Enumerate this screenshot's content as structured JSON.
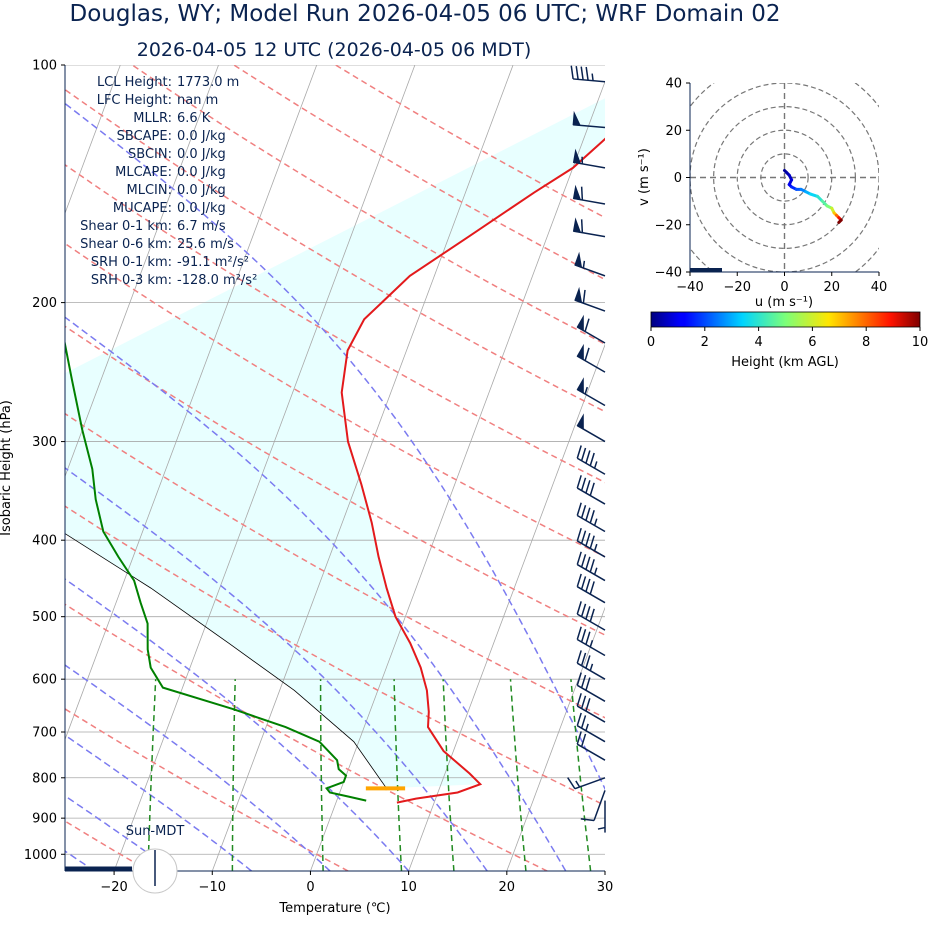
{
  "title_main": "Douglas, WY; Model Run 2026-04-05 06 UTC; WRF Domain 02",
  "title_sub": "2026-04-05 12 UTC  (2026-04-05 06 MDT)",
  "colors": {
    "temperature": "#e31a1c",
    "dewpoint": "#008000",
    "parcel": "#000000",
    "dry_adiabat": "#f08080",
    "moist_adiabat": "#7b7bf0",
    "mixing_ratio": "#228b22",
    "cape_shade": "#e8ffff",
    "barb": "#0a2350",
    "lcl_marker": "#ffa500"
  },
  "info": [
    {
      "label": "LCL Height:",
      "value": "1773.0 m"
    },
    {
      "label": "LFC Height:",
      "value": "nan m"
    },
    {
      "label": "MLLR:",
      "value": "6.6 K"
    },
    {
      "label": "SBCAPE:",
      "value": "0.0 J/kg"
    },
    {
      "label": "SBCIN:",
      "value": "0.0 J/kg"
    },
    {
      "label": "MLCAPE:",
      "value": "0.0 J/kg"
    },
    {
      "label": "MLCIN:",
      "value": "0.0 J/kg"
    },
    {
      "label": "MUCAPE:",
      "value": "0.0 J/kg"
    },
    {
      "label": "Shear 0-1 km:",
      "value": "6.7 m/s"
    },
    {
      "label": "Shear 0-6 km:",
      "value": "25.6 m/s"
    },
    {
      "label": "SRH 0-1 km:",
      "value": "-91.1 m²/s²"
    },
    {
      "label": "SRH 0-3 km:",
      "value": "-128.0 m²/s²"
    }
  ],
  "sun_label": "Sun-MDT",
  "chart_data": [
    {
      "type": "line",
      "name": "skew-T log-P",
      "xlabel": "Temperature (℃)",
      "ylabel": "Isobaric Height (hPa)",
      "xlim": [
        -25,
        30
      ],
      "ylim": [
        1050,
        100
      ],
      "x_ticks": [
        -20,
        -10,
        0,
        10,
        20,
        30
      ],
      "y_ticks": [
        100,
        200,
        300,
        400,
        500,
        600,
        700,
        800,
        900,
        1000
      ],
      "skew_deg_per_decade": 30,
      "grid": true,
      "series": [
        {
          "name": "",
          "key": "temperature",
          "points": [
            [
              6.2,
              860
            ],
            [
              8,
              850
            ],
            [
              12,
              835
            ],
            [
              14,
              815
            ],
            [
              12.5,
              790
            ],
            [
              9,
              740
            ],
            [
              6.5,
              690
            ],
            [
              6,
              660
            ],
            [
              5,
              620
            ],
            [
              3.5,
              580
            ],
            [
              1.5,
              540
            ],
            [
              -1,
              500
            ],
            [
              -3,
              460
            ],
            [
              -5,
              420
            ],
            [
              -7,
              380
            ],
            [
              -9.5,
              340
            ],
            [
              -12.5,
              300
            ],
            [
              -15,
              260
            ],
            [
              -16,
              230
            ],
            [
              -15.5,
              210
            ],
            [
              -12.5,
              185
            ],
            [
              -8,
              165
            ],
            [
              -3,
              145
            ],
            [
              0,
              135
            ],
            [
              2,
              125
            ],
            [
              4,
              115
            ],
            [
              6,
              100
            ]
          ]
        },
        {
          "name": "",
          "key": "dewpoint",
          "points": [
            [
              3,
              855
            ],
            [
              1,
              845
            ],
            [
              -1,
              835
            ],
            [
              -1.5,
              825
            ],
            [
              0,
              810
            ],
            [
              0,
              795
            ],
            [
              -1,
              780
            ],
            [
              -1.5,
              760
            ],
            [
              -4,
              720
            ],
            [
              -8,
              690
            ],
            [
              -14,
              655
            ],
            [
              -22,
              615
            ],
            [
              -24,
              580
            ],
            [
              -25,
              550
            ],
            [
              -26,
              510
            ],
            [
              -27.5,
              480
            ],
            [
              -29,
              450
            ],
            [
              -31.5,
              420
            ],
            [
              -34,
              390
            ],
            [
              -36,
              355
            ],
            [
              -37.5,
              325
            ],
            [
              -40,
              290
            ],
            [
              -43,
              250
            ],
            [
              -46,
              215
            ],
            [
              -48,
              190
            ],
            [
              -50,
              165
            ],
            [
              -54,
              145
            ],
            [
              -58,
              125
            ],
            [
              -62,
              105
            ],
            [
              -62,
              100
            ]
          ]
        },
        {
          "name": "",
          "key": "parcel",
          "points": [
            [
              4.6,
              825
            ],
            [
              -0.5,
              720
            ],
            [
              -8.5,
              620
            ],
            [
              -17,
              540
            ],
            [
              -27,
              460
            ],
            [
              -40,
              380
            ],
            [
              -55,
              300
            ]
          ]
        }
      ],
      "lcl": {
        "pressure": 825,
        "t_start": 2.5,
        "t_end": 6.5
      },
      "wind_barbs": [
        {
          "p": 855,
          "dir": 180,
          "kt": 5
        },
        {
          "p": 830,
          "dir": 200,
          "kt": 10
        },
        {
          "p": 800,
          "dir": 250,
          "kt": 15
        },
        {
          "p": 760,
          "dir": 300,
          "kt": 20
        },
        {
          "p": 720,
          "dir": 300,
          "kt": 25
        },
        {
          "p": 680,
          "dir": 300,
          "kt": 30
        },
        {
          "p": 640,
          "dir": 300,
          "kt": 30
        },
        {
          "p": 600,
          "dir": 300,
          "kt": 35
        },
        {
          "p": 560,
          "dir": 300,
          "kt": 35
        },
        {
          "p": 520,
          "dir": 300,
          "kt": 40
        },
        {
          "p": 480,
          "dir": 300,
          "kt": 40
        },
        {
          "p": 450,
          "dir": 300,
          "kt": 45
        },
        {
          "p": 420,
          "dir": 300,
          "kt": 45
        },
        {
          "p": 390,
          "dir": 300,
          "kt": 45
        },
        {
          "p": 360,
          "dir": 300,
          "kt": 40
        },
        {
          "p": 330,
          "dir": 300,
          "kt": 45
        },
        {
          "p": 300,
          "dir": 300,
          "kt": 50
        },
        {
          "p": 270,
          "dir": 300,
          "kt": 55
        },
        {
          "p": 245,
          "dir": 300,
          "kt": 60
        },
        {
          "p": 225,
          "dir": 300,
          "kt": 60
        },
        {
          "p": 205,
          "dir": 290,
          "kt": 60
        },
        {
          "p": 185,
          "dir": 290,
          "kt": 55
        },
        {
          "p": 165,
          "dir": 280,
          "kt": 60
        },
        {
          "p": 150,
          "dir": 280,
          "kt": 60
        },
        {
          "p": 135,
          "dir": 280,
          "kt": 55
        },
        {
          "p": 120,
          "dir": 275,
          "kt": 50
        },
        {
          "p": 105,
          "dir": 275,
          "kt": 45
        }
      ]
    },
    {
      "type": "line",
      "name": "hodograph",
      "xlabel": "u (m s⁻¹)",
      "ylabel": "v (m s⁻¹)",
      "xlim": [
        -40,
        40
      ],
      "ylim": [
        -40,
        40
      ],
      "ticks": [
        -40,
        -20,
        0,
        20,
        40
      ],
      "ring_step": 10,
      "points": [
        {
          "u": 0,
          "v": 3,
          "h": 0.0
        },
        {
          "u": 1,
          "v": 2,
          "h": 0.2
        },
        {
          "u": 2,
          "v": 1,
          "h": 0.4
        },
        {
          "u": 3,
          "v": -1,
          "h": 0.6
        },
        {
          "u": 2,
          "v": -3,
          "h": 0.8
        },
        {
          "u": 3,
          "v": -4,
          "h": 1.0
        },
        {
          "u": 5,
          "v": -5,
          "h": 1.5
        },
        {
          "u": 7,
          "v": -5,
          "h": 2.0
        },
        {
          "u": 9,
          "v": -6,
          "h": 2.5
        },
        {
          "u": 11,
          "v": -7,
          "h": 3.0
        },
        {
          "u": 14,
          "v": -8,
          "h": 3.5
        },
        {
          "u": 16,
          "v": -10,
          "h": 4.0
        },
        {
          "u": 18,
          "v": -12,
          "h": 4.5
        },
        {
          "u": 20,
          "v": -13,
          "h": 5.0
        },
        {
          "u": 21,
          "v": -15,
          "h": 6.0
        },
        {
          "u": 22,
          "v": -16,
          "h": 7.0
        },
        {
          "u": 23,
          "v": -17,
          "h": 8.0
        },
        {
          "u": 24,
          "v": -18,
          "h": 9.0
        },
        {
          "u": 23,
          "v": -19,
          "h": 10.0
        }
      ],
      "colorbar": {
        "label": "Height (km AGL)",
        "min": 0,
        "max": 10,
        "ticks": [
          0,
          2,
          4,
          6,
          8,
          10
        ]
      }
    }
  ]
}
